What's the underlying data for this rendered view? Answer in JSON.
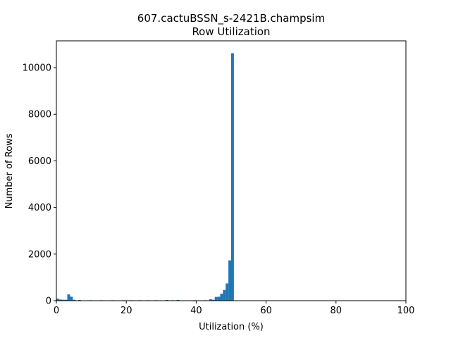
{
  "chart_data": {
    "type": "bar",
    "title": "607.cactuBSSN_s-2421B.champsim",
    "subtitle": "Row Utilization",
    "xlabel": "Utilization (%)",
    "ylabel": "Number of Rows",
    "xlim": [
      0,
      100
    ],
    "ylim": [
      0,
      11150
    ],
    "xticks": [
      0,
      20,
      40,
      60,
      80,
      100
    ],
    "yticks": [
      0,
      2000,
      4000,
      6000,
      8000,
      10000
    ],
    "grid": false,
    "legend": "none",
    "bar_color": "#1f77b4",
    "bin_width": 0.78125,
    "bins": [
      {
        "x": 0.0,
        "value": 90
      },
      {
        "x": 0.78,
        "value": 50
      },
      {
        "x": 1.56,
        "value": 40
      },
      {
        "x": 2.34,
        "value": 40
      },
      {
        "x": 3.13,
        "value": 270
      },
      {
        "x": 3.91,
        "value": 170
      },
      {
        "x": 4.69,
        "value": 40
      },
      {
        "x": 6.25,
        "value": 30
      },
      {
        "x": 9.38,
        "value": 20
      },
      {
        "x": 12.5,
        "value": 20
      },
      {
        "x": 15.63,
        "value": 20
      },
      {
        "x": 18.75,
        "value": 20
      },
      {
        "x": 21.09,
        "value": 20
      },
      {
        "x": 23.44,
        "value": 20
      },
      {
        "x": 25.78,
        "value": 20
      },
      {
        "x": 28.13,
        "value": 20
      },
      {
        "x": 31.25,
        "value": 30
      },
      {
        "x": 32.81,
        "value": 20
      },
      {
        "x": 34.38,
        "value": 30
      },
      {
        "x": 39.06,
        "value": 20
      },
      {
        "x": 42.19,
        "value": 20
      },
      {
        "x": 43.75,
        "value": 60
      },
      {
        "x": 44.53,
        "value": 40
      },
      {
        "x": 45.31,
        "value": 160
      },
      {
        "x": 46.09,
        "value": 170
      },
      {
        "x": 46.88,
        "value": 300
      },
      {
        "x": 47.66,
        "value": 460
      },
      {
        "x": 48.44,
        "value": 740
      },
      {
        "x": 49.22,
        "value": 1730
      },
      {
        "x": 50.0,
        "value": 10620
      }
    ]
  }
}
